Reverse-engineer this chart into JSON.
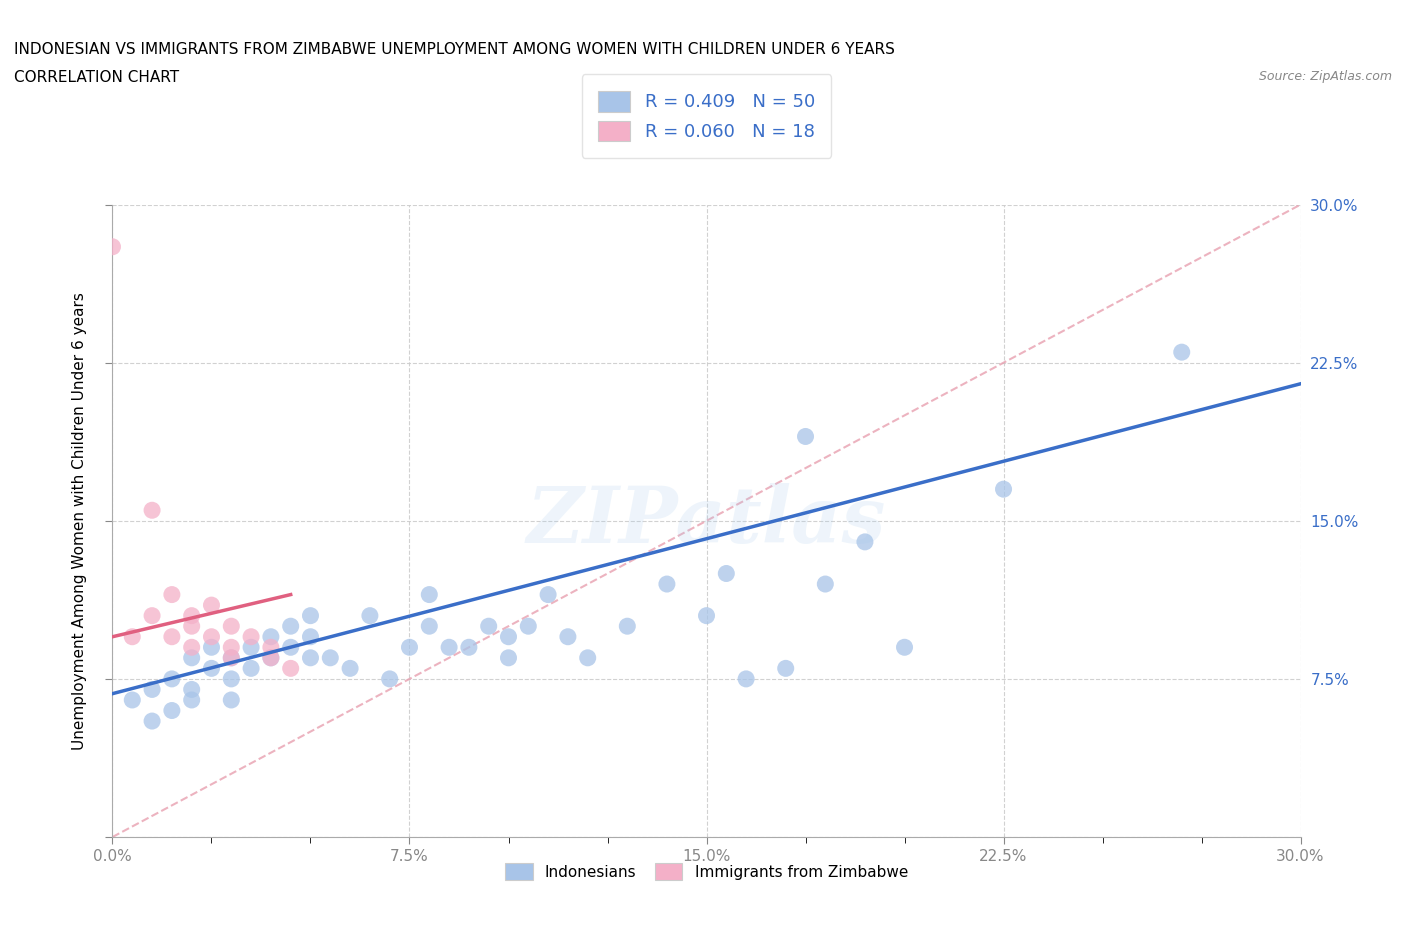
{
  "title_line1": "INDONESIAN VS IMMIGRANTS FROM ZIMBABWE UNEMPLOYMENT AMONG WOMEN WITH CHILDREN UNDER 6 YEARS",
  "title_line2": "CORRELATION CHART",
  "source": "Source: ZipAtlas.com",
  "ylabel": "Unemployment Among Women with Children Under 6 years",
  "xlim": [
    0.0,
    0.3
  ],
  "ylim": [
    0.0,
    0.3
  ],
  "ytick_vals": [
    0.0,
    0.075,
    0.15,
    0.225,
    0.3
  ],
  "xtick_vals": [
    0.0,
    0.075,
    0.15,
    0.225,
    0.3
  ],
  "tick_labels": [
    "0.0%",
    "7.5%",
    "15.0%",
    "22.5%",
    "30.0%"
  ],
  "legend_R1": "R = 0.409",
  "legend_N1": "N = 50",
  "legend_R2": "R = 0.060",
  "legend_N2": "N = 18",
  "blue_color": "#a8c4e8",
  "pink_color": "#f4b0c8",
  "line_blue": "#3a6ec8",
  "line_pink": "#e06080",
  "dashed_color": "#e8a0b0",
  "indonesian_x": [
    0.005,
    0.01,
    0.01,
    0.015,
    0.015,
    0.02,
    0.02,
    0.02,
    0.025,
    0.025,
    0.03,
    0.03,
    0.03,
    0.035,
    0.035,
    0.04,
    0.04,
    0.045,
    0.045,
    0.05,
    0.05,
    0.05,
    0.055,
    0.06,
    0.065,
    0.07,
    0.075,
    0.08,
    0.08,
    0.085,
    0.09,
    0.095,
    0.1,
    0.1,
    0.105,
    0.11,
    0.115,
    0.12,
    0.13,
    0.14,
    0.15,
    0.155,
    0.16,
    0.17,
    0.175,
    0.18,
    0.19,
    0.2,
    0.225,
    0.27
  ],
  "indonesian_y": [
    0.065,
    0.07,
    0.055,
    0.075,
    0.06,
    0.085,
    0.07,
    0.065,
    0.09,
    0.08,
    0.085,
    0.075,
    0.065,
    0.09,
    0.08,
    0.095,
    0.085,
    0.1,
    0.09,
    0.105,
    0.095,
    0.085,
    0.085,
    0.08,
    0.105,
    0.075,
    0.09,
    0.1,
    0.115,
    0.09,
    0.09,
    0.1,
    0.085,
    0.095,
    0.1,
    0.115,
    0.095,
    0.085,
    0.1,
    0.12,
    0.105,
    0.125,
    0.075,
    0.08,
    0.19,
    0.12,
    0.14,
    0.09,
    0.165,
    0.23
  ],
  "zimbabwe_x": [
    0.0,
    0.005,
    0.01,
    0.01,
    0.015,
    0.015,
    0.02,
    0.02,
    0.02,
    0.025,
    0.025,
    0.03,
    0.03,
    0.03,
    0.035,
    0.04,
    0.04,
    0.045
  ],
  "zimbabwe_y": [
    0.28,
    0.095,
    0.155,
    0.105,
    0.115,
    0.095,
    0.105,
    0.1,
    0.09,
    0.11,
    0.095,
    0.1,
    0.09,
    0.085,
    0.095,
    0.09,
    0.085,
    0.08
  ],
  "blue_line_x": [
    0.0,
    0.3
  ],
  "blue_line_y": [
    0.068,
    0.215
  ],
  "pink_line_x": [
    0.0,
    0.045
  ],
  "pink_line_y": [
    0.095,
    0.115
  ],
  "watermark": "ZIPatlas",
  "background_color": "#ffffff",
  "grid_color": "#cccccc",
  "tick_color": "#3a6ec8"
}
